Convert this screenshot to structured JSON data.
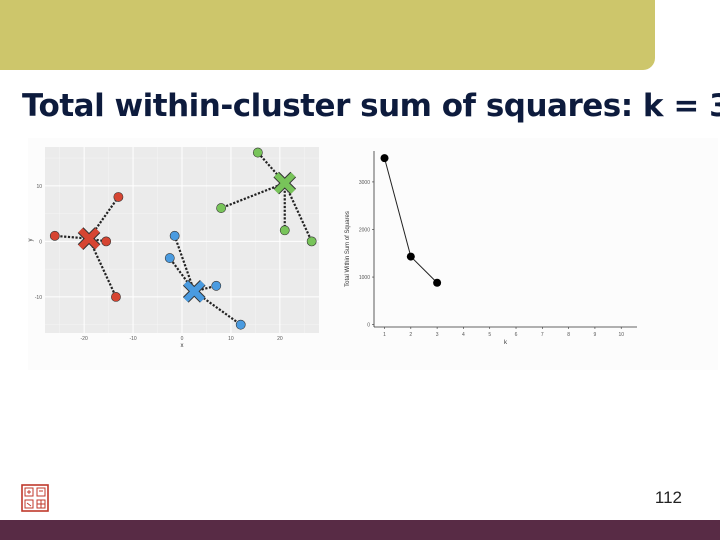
{
  "slide": {
    "title": "Total within-cluster sum of squares: k = 3",
    "page_number": "112",
    "colors": {
      "top_bar": "#cdc66b",
      "bottom_bar": "#582b45",
      "title": "#0d1b3d",
      "cluster_red": "#d64532",
      "cluster_blue": "#4a9be0",
      "cluster_green": "#78c45a"
    }
  },
  "chart_data": [
    {
      "type": "scatter",
      "xlabel": "x",
      "ylabel": "y",
      "xlim": [
        -28,
        28
      ],
      "ylim": [
        -16.5,
        17
      ],
      "x_ticks": [
        -20,
        -10,
        0,
        10,
        20
      ],
      "y_ticks": [
        -10,
        0,
        10
      ],
      "grid": true,
      "clusters": [
        {
          "color": "#d64532",
          "centroid": [
            -19,
            0.5
          ],
          "points": [
            [
              -26,
              1
            ],
            [
              -13,
              8
            ],
            [
              -15.5,
              0
            ],
            [
              -13.5,
              -10
            ]
          ]
        },
        {
          "color": "#4a9be0",
          "centroid": [
            2.5,
            -9
          ],
          "points": [
            [
              -1.5,
              1
            ],
            [
              -2.5,
              -3
            ],
            [
              7,
              -8
            ],
            [
              12,
              -15
            ]
          ]
        },
        {
          "color": "#78c45a",
          "centroid": [
            21,
            10.5
          ],
          "points": [
            [
              15.5,
              16
            ],
            [
              8,
              6
            ],
            [
              21,
              2
            ],
            [
              26.5,
              0
            ]
          ]
        }
      ]
    },
    {
      "type": "line",
      "xlabel": "k",
      "ylabel": "Total Within Sum of Squares",
      "x": [
        1,
        2,
        3
      ],
      "y": [
        3500,
        1430,
        880
      ],
      "xlim": [
        0.6,
        10.6
      ],
      "ylim": [
        -50,
        3650
      ],
      "x_ticks": [
        1,
        2,
        3,
        4,
        5,
        6,
        7,
        8,
        9,
        10
      ],
      "y_ticks": [
        0,
        1000,
        2000,
        3000
      ],
      "grid": false
    }
  ]
}
